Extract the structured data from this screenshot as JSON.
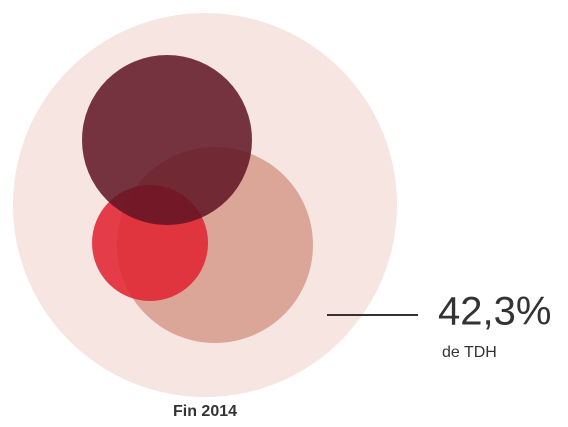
{
  "chart_data": {
    "type": "bubble",
    "title": "Fin 2014",
    "values": [
      42.3
    ],
    "value_labels": [
      "42,3%"
    ],
    "annotation": "de TDH"
  }
}
